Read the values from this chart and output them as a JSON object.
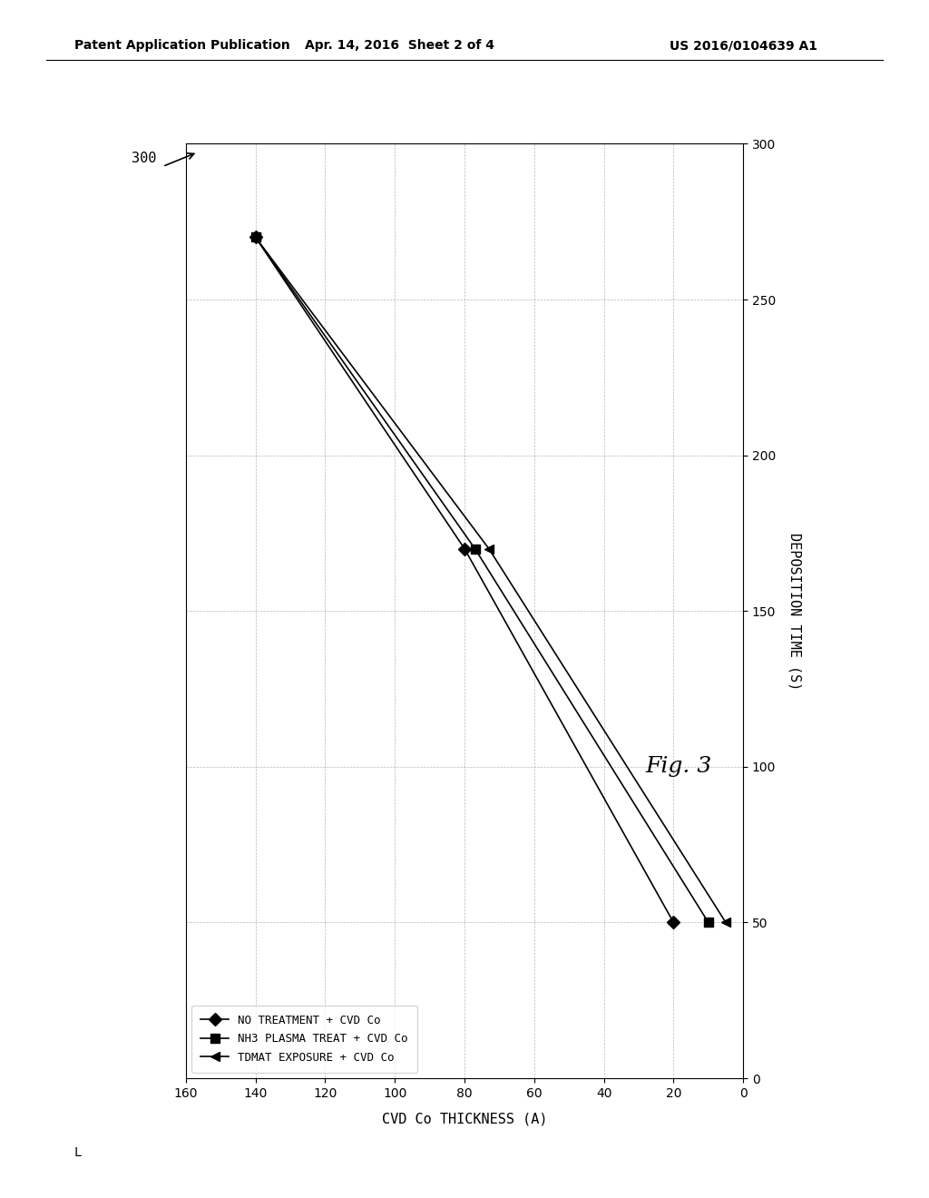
{
  "header_left": "Patent Application Publication",
  "header_mid": "Apr. 14, 2016  Sheet 2 of 4",
  "header_right": "US 2016/0104639 A1",
  "xlabel": "CVD Co THICKNESS (A)",
  "ylabel": "DEPOSITION TIME (S)",
  "fig_caption": "Fig. 3",
  "callout_label": "300",
  "xlim": [
    0,
    160
  ],
  "ylim": [
    0,
    300
  ],
  "xticks": [
    0,
    20,
    40,
    60,
    80,
    100,
    120,
    140,
    160
  ],
  "yticks": [
    0,
    50,
    100,
    150,
    200,
    250,
    300
  ],
  "series": [
    {
      "label": "NO TREATMENT + CVD Co",
      "x": [
        20,
        80,
        140
      ],
      "y": [
        50,
        170,
        270
      ],
      "marker": "D",
      "markersize": 7
    },
    {
      "label": "NH3 PLASMA TREAT + CVD Co",
      "x": [
        10,
        77,
        140
      ],
      "y": [
        50,
        170,
        270
      ],
      "marker": "s",
      "markersize": 7
    },
    {
      "label": "TDMAT EXPOSURE + CVD Co",
      "x": [
        5,
        73,
        140
      ],
      "y": [
        50,
        170,
        270
      ],
      "marker": "<",
      "markersize": 7
    }
  ],
  "line_color": "#000000",
  "line_width": 1.2,
  "bg_color": "#ffffff",
  "header_fontsize": 10,
  "axis_label_fontsize": 11,
  "tick_fontsize": 10,
  "legend_fontsize": 9,
  "fig_caption_fontsize": 18,
  "callout_fontsize": 11,
  "footer_letter": "L"
}
